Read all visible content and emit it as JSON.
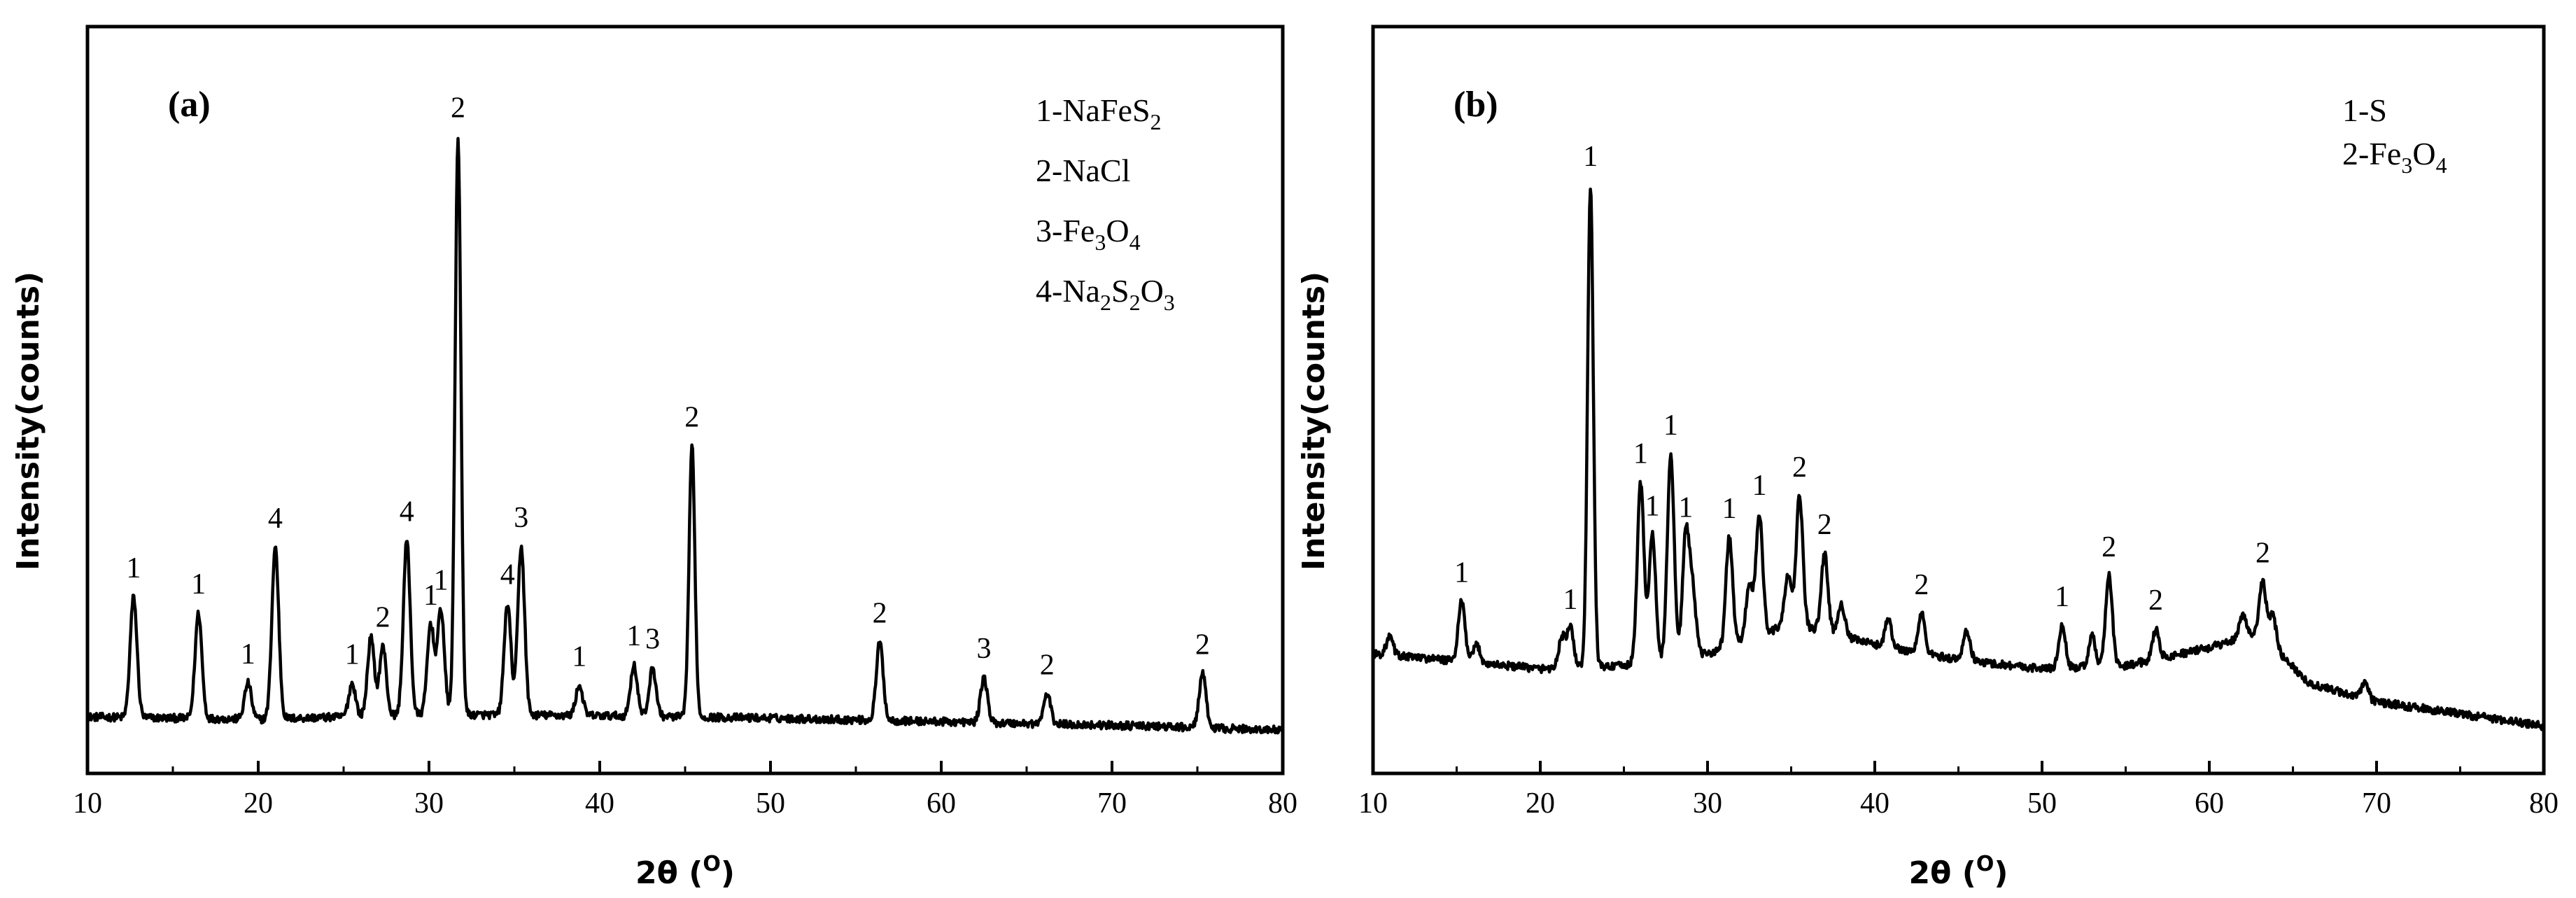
{
  "figure": {
    "x_ticks": [
      "10",
      "20",
      "30",
      "40",
      "50",
      "60",
      "70",
      "80"
    ]
  },
  "chart_data": [
    {
      "type": "line",
      "panel_label": "(a)",
      "xlabel": "2θ (°)",
      "ylabel": "Intensity(counts)",
      "xlim": [
        10,
        80
      ],
      "ylim": [
        0,
        100
      ],
      "x_ticks": [
        10,
        20,
        30,
        40,
        50,
        60,
        70,
        80
      ],
      "grid": false,
      "legend_position": "top-right",
      "legend": [
        {
          "prefix": "1-NaFeS",
          "parts": [
            [
              "2",
              "sub"
            ]
          ]
        },
        {
          "prefix": "2-NaCl",
          "parts": []
        },
        {
          "prefix": "3-Fe",
          "parts": [
            [
              "3",
              "sub"
            ],
            [
              "O",
              ""
            ],
            [
              "4",
              "sub"
            ]
          ]
        },
        {
          "prefix": "4-Na",
          "parts": [
            [
              "2",
              "sub"
            ],
            [
              "S",
              ""
            ],
            [
              "2",
              "sub"
            ],
            [
              "O",
              ""
            ],
            [
              "3",
              "sub"
            ]
          ]
        }
      ],
      "baseline": [
        [
          10,
          3.0
        ],
        [
          20,
          2.6
        ],
        [
          30,
          3.4
        ],
        [
          40,
          3.2
        ],
        [
          50,
          2.8
        ],
        [
          60,
          2.2
        ],
        [
          70,
          1.6
        ],
        [
          80,
          0.8
        ]
      ],
      "peaks": [
        {
          "x": 12.7,
          "y": 20.0,
          "label": "1"
        },
        {
          "x": 16.5,
          "y": 17.5,
          "label": "1"
        },
        {
          "x": 19.4,
          "y": 6.0,
          "label": "1"
        },
        {
          "x": 21.0,
          "y": 28.5,
          "label": "4"
        },
        {
          "x": 25.5,
          "y": 5.5,
          "label": "1"
        },
        {
          "x": 26.6,
          "y": 13.0,
          "label": ""
        },
        {
          "x": 27.3,
          "y": 11.5,
          "label": "2"
        },
        {
          "x": 28.7,
          "y": 29.0,
          "label": "4"
        },
        {
          "x": 30.1,
          "y": 15.0,
          "label": "1"
        },
        {
          "x": 30.7,
          "y": 17.5,
          "label": "1"
        },
        {
          "x": 31.7,
          "y": 96.0,
          "label": "2"
        },
        {
          "x": 34.6,
          "y": 18.5,
          "label": "4"
        },
        {
          "x": 35.4,
          "y": 28.0,
          "label": "3"
        },
        {
          "x": 38.8,
          "y": 5.0,
          "label": "1"
        },
        {
          "x": 42.0,
          "y": 8.5,
          "label": "1"
        },
        {
          "x": 43.1,
          "y": 8.0,
          "label": "3"
        },
        {
          "x": 45.4,
          "y": 45.0,
          "label": "2"
        },
        {
          "x": 56.4,
          "y": 13.0,
          "label": "2"
        },
        {
          "x": 62.5,
          "y": 7.5,
          "label": "3"
        },
        {
          "x": 66.2,
          "y": 5.0,
          "label": "2"
        },
        {
          "x": 75.3,
          "y": 9.0,
          "label": "2"
        }
      ]
    },
    {
      "type": "line",
      "panel_label": "(b)",
      "xlabel": "2θ (°)",
      "ylabel": "Intensity(counts)",
      "xlim": [
        10,
        80
      ],
      "ylim": [
        0,
        100
      ],
      "x_ticks": [
        10,
        20,
        30,
        40,
        50,
        60,
        70,
        80
      ],
      "grid": false,
      "legend_position": "top-right",
      "legend": [
        {
          "prefix": "1-S",
          "parts": []
        },
        {
          "prefix": "2-Fe",
          "parts": [
            [
              "3",
              "sub"
            ],
            [
              "O",
              ""
            ],
            [
              "4",
              "sub"
            ]
          ]
        }
      ],
      "baseline": [
        [
          10,
          13.5
        ],
        [
          20,
          11.0
        ],
        [
          25,
          11.5
        ],
        [
          30,
          13.5
        ],
        [
          35,
          18.5
        ],
        [
          40,
          15.0
        ],
        [
          45,
          12.5
        ],
        [
          50,
          11.0
        ],
        [
          55,
          11.5
        ],
        [
          60,
          14.5
        ],
        [
          63,
          17.0
        ],
        [
          66,
          8.5
        ],
        [
          70,
          5.5
        ],
        [
          75,
          3.5
        ],
        [
          80,
          1.5
        ]
      ],
      "peaks": [
        {
          "x": 11.0,
          "y": 3.0,
          "label": ""
        },
        {
          "x": 15.3,
          "y": 10.0,
          "label": "1"
        },
        {
          "x": 16.2,
          "y": 3.0,
          "label": ""
        },
        {
          "x": 21.3,
          "y": 5.0,
          "label": ""
        },
        {
          "x": 21.8,
          "y": 6.5,
          "label": "1"
        },
        {
          "x": 23.0,
          "y": 80.0,
          "label": "1"
        },
        {
          "x": 26.0,
          "y": 30.0,
          "label": "1"
        },
        {
          "x": 26.7,
          "y": 21.0,
          "label": "1"
        },
        {
          "x": 27.8,
          "y": 34.0,
          "label": "1"
        },
        {
          "x": 28.7,
          "y": 20.0,
          "label": "1"
        },
        {
          "x": 29.1,
          "y": 11.0,
          "label": ""
        },
        {
          "x": 31.3,
          "y": 18.0,
          "label": "1"
        },
        {
          "x": 32.5,
          "y": 9.0,
          "label": ""
        },
        {
          "x": 33.1,
          "y": 20.0,
          "label": "1"
        },
        {
          "x": 34.8,
          "y": 8.0,
          "label": ""
        },
        {
          "x": 35.5,
          "y": 21.5,
          "label": "2"
        },
        {
          "x": 37.0,
          "y": 13.0,
          "label": "2"
        },
        {
          "x": 38.0,
          "y": 5.5,
          "label": ""
        },
        {
          "x": 40.8,
          "y": 4.5,
          "label": ""
        },
        {
          "x": 42.8,
          "y": 6.5,
          "label": "2"
        },
        {
          "x": 45.5,
          "y": 5.0,
          "label": ""
        },
        {
          "x": 51.2,
          "y": 7.0,
          "label": "1"
        },
        {
          "x": 53.0,
          "y": 5.0,
          "label": ""
        },
        {
          "x": 54.0,
          "y": 15.0,
          "label": "2"
        },
        {
          "x": 56.8,
          "y": 5.0,
          "label": "2"
        },
        {
          "x": 62.0,
          "y": 4.0,
          "label": ""
        },
        {
          "x": 63.2,
          "y": 9.0,
          "label": "2"
        },
        {
          "x": 63.8,
          "y": 5.0,
          "label": ""
        },
        {
          "x": 69.3,
          "y": 2.5,
          "label": ""
        }
      ]
    }
  ]
}
